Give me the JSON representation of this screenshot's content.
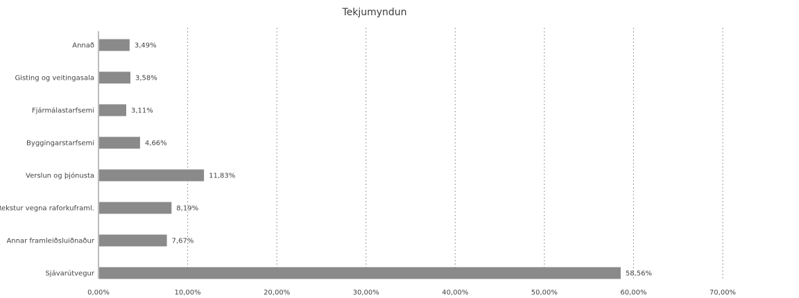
{
  "chart_data": {
    "type": "bar",
    "orientation": "horizontal",
    "title": "Tekjumyndun",
    "categories": [
      "Annað",
      "Gisting og veitingasala",
      "Fjármálastarfsemi",
      "Byggingarstarfsemi",
      "Verslun og þjónusta",
      "Rekstur vegna raforkuframl.",
      "Annar framleiðsluiðnaður",
      "Sjávarútvegur"
    ],
    "values": [
      3.49,
      3.58,
      3.11,
      4.66,
      11.83,
      8.19,
      7.67,
      58.56
    ],
    "data_labels": [
      "3,49%",
      "3,58%",
      "3,11%",
      "4,66%",
      "11,83%",
      "8,19%",
      "7,67%",
      "58,56%"
    ],
    "x_ticks": [
      0,
      10,
      20,
      30,
      40,
      50,
      60,
      70
    ],
    "x_tick_labels": [
      "0,00%",
      "10,00%",
      "20,00%",
      "30,00%",
      "40,00%",
      "50,00%",
      "60,00%",
      "70,00%"
    ],
    "xlim": [
      0,
      70
    ],
    "grid": "vertical",
    "legend": "none",
    "bar_color": "#8a8a8a"
  }
}
